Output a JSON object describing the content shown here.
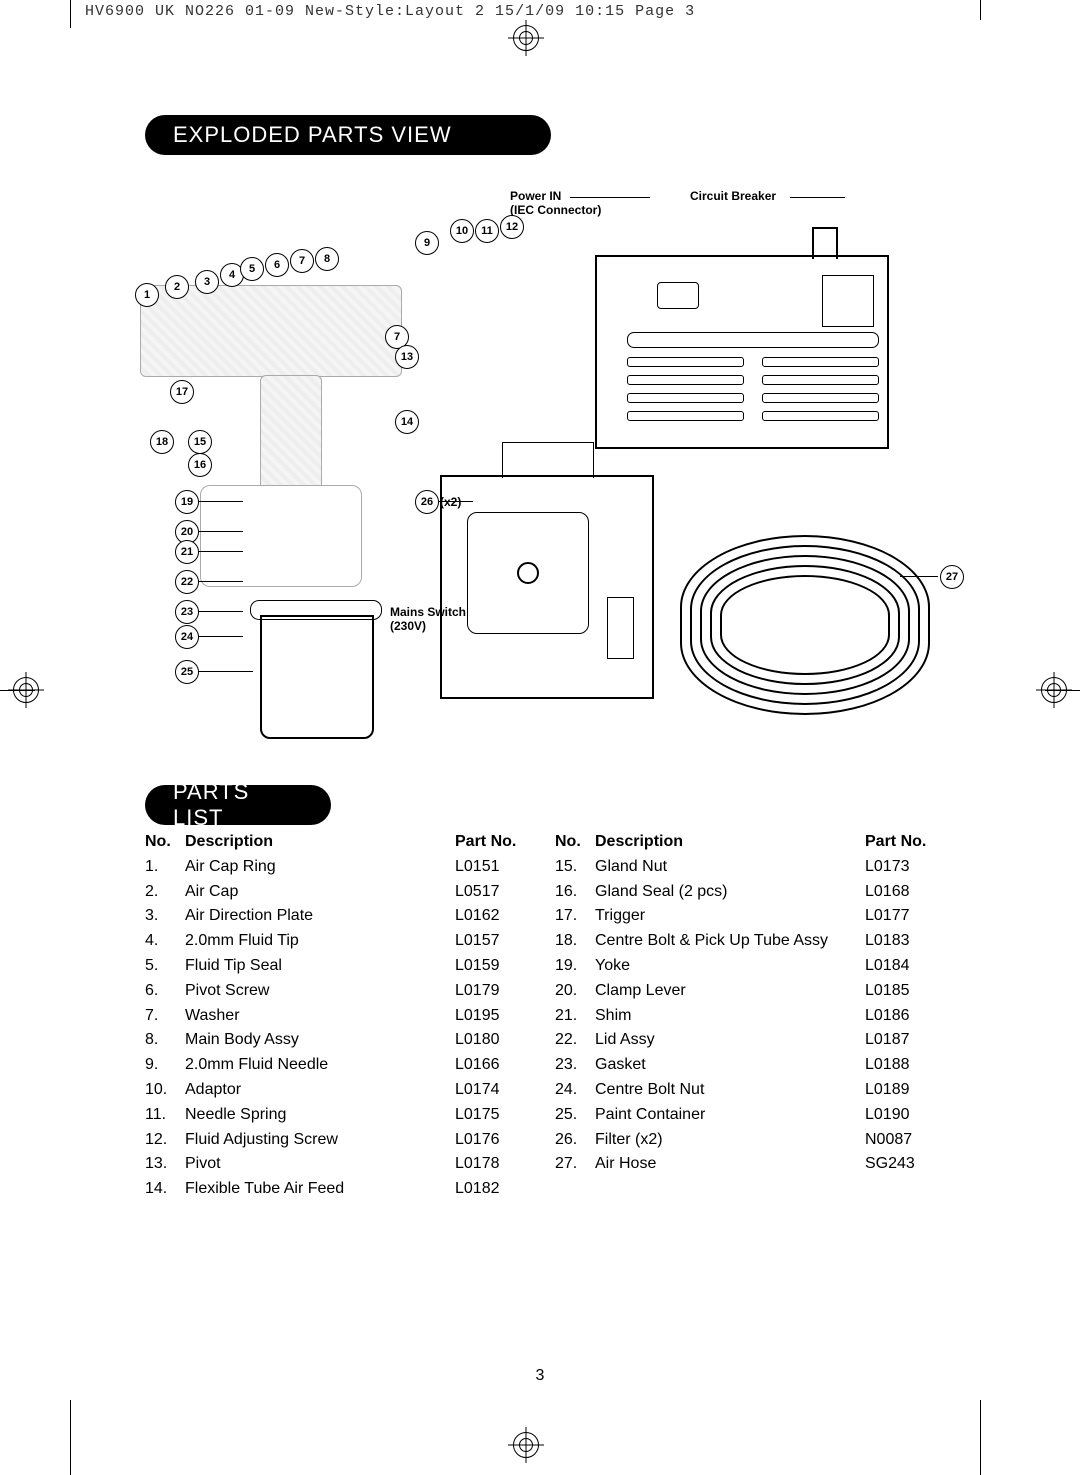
{
  "slug": "HV6900 UK NO226 01-09 New-Style:Layout 2  15/1/09  10:15  Page 3",
  "sections": {
    "exploded": "EXPLODED PARTS VIEW",
    "parts": "PARTS LIST"
  },
  "diagram_labels": {
    "power_in_1": "Power IN",
    "power_in_2": "(IEC Connector)",
    "circuit_breaker": "Circuit Breaker",
    "mains_1": "Mains Switch",
    "mains_2": "(230V)",
    "x2": "(x2)"
  },
  "callouts_top_row": [
    "1",
    "2",
    "3",
    "4",
    "5",
    "6",
    "7",
    "8"
  ],
  "callouts_upper_right": [
    "9",
    "10",
    "11",
    "12"
  ],
  "callouts_mid": [
    "7",
    "13",
    "14",
    "15",
    "16",
    "17",
    "18"
  ],
  "callouts_left_col": [
    "19",
    "20",
    "21",
    "22",
    "23",
    "24",
    "25"
  ],
  "callouts_right": [
    "26",
    "27"
  ],
  "headers": {
    "no": "No.",
    "desc": "Description",
    "part": "Part No."
  },
  "parts_left": [
    {
      "n": "1.",
      "d": "Air Cap Ring",
      "p": "L0151"
    },
    {
      "n": "2.",
      "d": "Air Cap",
      "p": "L0517"
    },
    {
      "n": "3.",
      "d": "Air Direction Plate",
      "p": "L0162"
    },
    {
      "n": "4.",
      "d": "2.0mm Fluid Tip",
      "p": "L0157"
    },
    {
      "n": "5.",
      "d": "Fluid Tip Seal",
      "p": "L0159"
    },
    {
      "n": "6.",
      "d": "Pivot Screw",
      "p": "L0179"
    },
    {
      "n": "7.",
      "d": "Washer",
      "p": "L0195"
    },
    {
      "n": "8.",
      "d": "Main Body Assy",
      "p": "L0180"
    },
    {
      "n": "9.",
      "d": "2.0mm Fluid Needle",
      "p": "L0166"
    },
    {
      "n": "10.",
      "d": "Adaptor",
      "p": "L0174"
    },
    {
      "n": "11.",
      "d": "Needle Spring",
      "p": "L0175"
    },
    {
      "n": "12.",
      "d": "Fluid Adjusting Screw",
      "p": "L0176"
    },
    {
      "n": "13.",
      "d": "Pivot",
      "p": "L0178"
    },
    {
      "n": "14.",
      "d": "Flexible Tube Air Feed",
      "p": "L0182"
    }
  ],
  "parts_right": [
    {
      "n": "15.",
      "d": "Gland Nut",
      "p": "L0173"
    },
    {
      "n": "16.",
      "d": "Gland Seal (2 pcs)",
      "p": "L0168"
    },
    {
      "n": "17.",
      "d": "Trigger",
      "p": "L0177"
    },
    {
      "n": "18.",
      "d": "Centre Bolt & Pick Up Tube Assy",
      "p": "L0183"
    },
    {
      "n": "19.",
      "d": "Yoke",
      "p": "L0184"
    },
    {
      "n": "20.",
      "d": "Clamp Lever",
      "p": "L0185"
    },
    {
      "n": "21.",
      "d": "Shim",
      "p": "L0186"
    },
    {
      "n": "22.",
      "d": "Lid Assy",
      "p": "L0187"
    },
    {
      "n": "23.",
      "d": "Gasket",
      "p": "L0188"
    },
    {
      "n": "24.",
      "d": "Centre Bolt Nut",
      "p": "L0189"
    },
    {
      "n": "25.",
      "d": "Paint Container",
      "p": "L0190"
    },
    {
      "n": "26.",
      "d": "Filter (x2)",
      "p": "N0087"
    },
    {
      "n": "27.",
      "d": "Air Hose",
      "p": "SG243"
    }
  ],
  "page_number": "3"
}
